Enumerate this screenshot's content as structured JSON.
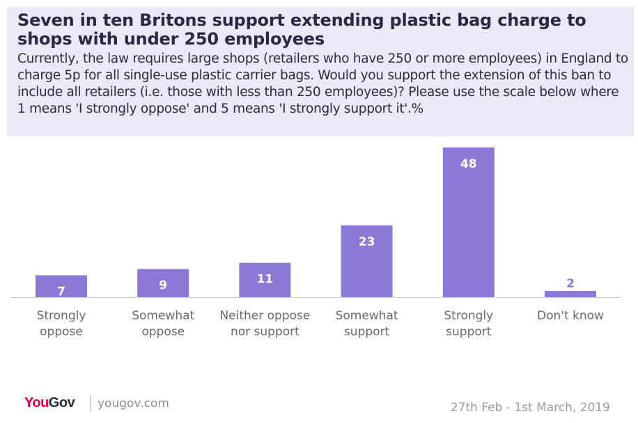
{
  "header": {
    "title": "Seven in ten Britons support extending plastic bag charge to shops with under 250 employees",
    "subtitle": "Currently, the law requires large shops (retailers who have 250 or more employees) in England to charge 5p for all single-use plastic carrier bags. Would you support the extension of this ban to include all retailers (i.e. those with less than 250 employees)? Please use the scale below where 1 means 'I strongly oppose' and 5 means 'I strongly support it'.%"
  },
  "chart_data": {
    "type": "bar",
    "categories": [
      [
        "Strongly",
        "oppose"
      ],
      [
        "Somewhat",
        "oppose"
      ],
      [
        "Neither oppose",
        "nor support"
      ],
      [
        "Somewhat",
        "support"
      ],
      [
        "Strongly",
        "support"
      ],
      [
        "Don't know"
      ]
    ],
    "values": [
      7,
      9,
      11,
      23,
      48,
      2
    ],
    "ylim": [
      0,
      48
    ],
    "grid": false,
    "legend": "none",
    "bar_color": "#8e78d6",
    "label_color": "#ffffff",
    "outside_label_color": "#8e78d6",
    "axis_color": "#cccccc",
    "category_color": "#6a6a6a"
  },
  "footer": {
    "logo_you": "You",
    "logo_gov": "Gov",
    "url": "yougov.com",
    "date": "27th Feb - 1st March, 2019"
  }
}
